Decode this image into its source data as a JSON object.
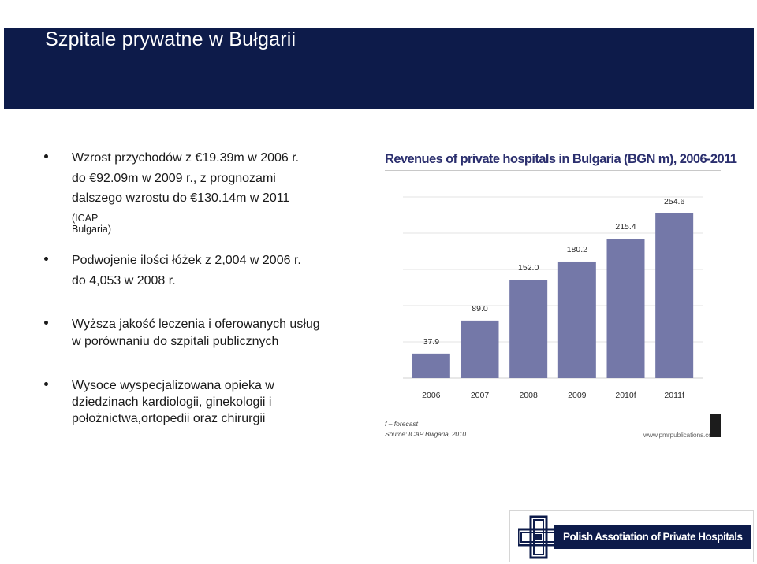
{
  "slide": {
    "title": "Szpitale prywatne w Bułgarii"
  },
  "bullets": [
    {
      "lines": [
        "Wzrost przychodów z €19.39m w 2006 r.",
        "do €92.09m w 2009 r., z prognozami",
        "dalszego wzrostu do €130.14m w 2011"
      ],
      "note": "(ICAP Bulgaria)"
    },
    {
      "lines": [
        "Podwojenie ilości łóżek z 2,004 w 2006 r.",
        "do 4,053 w 2008 r."
      ]
    },
    {
      "lines": [
        "Wyższa jakość leczenia i oferowanych usług",
        "w porównaniu do szpitali publicznych"
      ]
    },
    {
      "lines": [
        "Wysoce wyspecjalizowana opieka w",
        "dziedzinach kardiologii, ginekologii i",
        "położnictwa,ortopedii oraz chirurgii"
      ]
    }
  ],
  "chart_data": {
    "type": "bar",
    "title": "Revenues of private hospitals in Bulgaria (BGN m), 2006-2011",
    "categories": [
      "2006",
      "2007",
      "2008",
      "2009",
      "2010f",
      "2011f"
    ],
    "values": [
      37.9,
      89.0,
      152.0,
      180.2,
      215.4,
      254.6
    ],
    "value_labels": [
      "37.9",
      "89.0",
      "152.0",
      "180.2",
      "215.4",
      "254.6"
    ],
    "ylim": [
      0,
      280
    ],
    "bar_color": "#7478a8",
    "title_color": "#2b2f6e",
    "footnote": "f – forecast",
    "source": "Source: ICAP Bulgaria, 2010",
    "website": "www.pmrpublications.com"
  },
  "logo": {
    "text": "Polish Assotiation of Private Hospitals",
    "icon": "cross-emblem-icon"
  },
  "colors": {
    "title_bar": "#0d1b4a",
    "title_text": "#ffffff"
  }
}
